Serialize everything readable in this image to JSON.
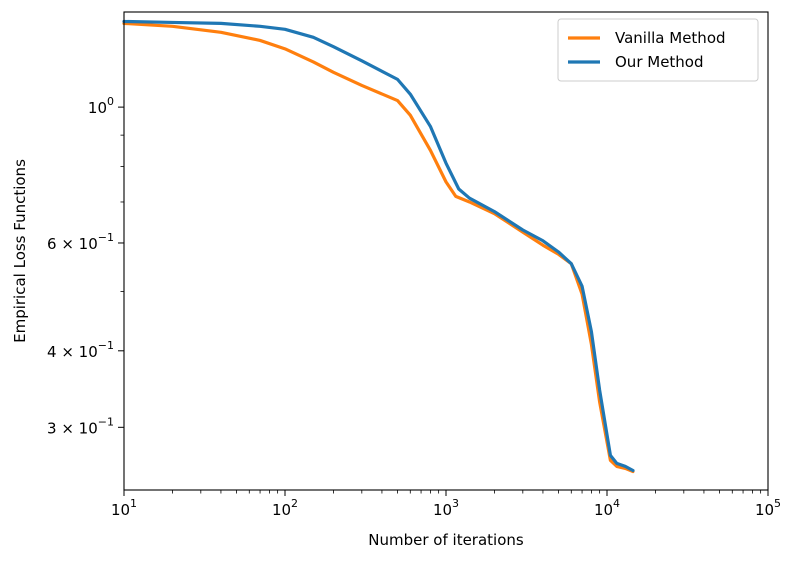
{
  "chart_data": {
    "type": "line",
    "title": "",
    "xlabel": "Number of iterations",
    "ylabel": "Empirical Loss Functions",
    "xscale": "log",
    "yscale": "log",
    "xlim": [
      10,
      100000
    ],
    "ylim": [
      0.237,
      1.43
    ],
    "grid": false,
    "legend": "top-right",
    "x_tick_labels": [
      {
        "value": 10,
        "base": "10",
        "exp": "1"
      },
      {
        "value": 100,
        "base": "10",
        "exp": "2"
      },
      {
        "value": 1000,
        "base": "10",
        "exp": "3"
      },
      {
        "value": 10000,
        "base": "10",
        "exp": "4"
      },
      {
        "value": 100000,
        "base": "10",
        "exp": "5"
      }
    ],
    "y_tick_labels": [
      {
        "value": 1.0,
        "base": "10",
        "exp": "0",
        "mant": ""
      },
      {
        "value": 0.6,
        "base": "10",
        "exp": "−1",
        "mant": "6 × "
      },
      {
        "value": 0.4,
        "base": "10",
        "exp": "−1",
        "mant": "4 × "
      },
      {
        "value": 0.3,
        "base": "10",
        "exp": "−1",
        "mant": "3 × "
      }
    ],
    "y_minor_ticks": [
      0.5,
      0.7,
      0.8,
      0.9
    ],
    "series": [
      {
        "name": "Vanilla Method",
        "color": "#ff7f0e",
        "points": [
          [
            10,
            1.37
          ],
          [
            20,
            1.355
          ],
          [
            40,
            1.325
          ],
          [
            70,
            1.285
          ],
          [
            100,
            1.245
          ],
          [
            150,
            1.185
          ],
          [
            200,
            1.14
          ],
          [
            300,
            1.085
          ],
          [
            500,
            1.025
          ],
          [
            600,
            0.97
          ],
          [
            800,
            0.85
          ],
          [
            1000,
            0.755
          ],
          [
            1150,
            0.715
          ],
          [
            1400,
            0.7
          ],
          [
            2000,
            0.67
          ],
          [
            3000,
            0.625
          ],
          [
            4000,
            0.595
          ],
          [
            5000,
            0.575
          ],
          [
            6000,
            0.555
          ],
          [
            7000,
            0.495
          ],
          [
            8000,
            0.41
          ],
          [
            9000,
            0.33
          ],
          [
            10500,
            0.265
          ],
          [
            11500,
            0.259
          ],
          [
            13000,
            0.257
          ],
          [
            14500,
            0.254
          ]
        ]
      },
      {
        "name": "Our Method",
        "color": "#1f77b4",
        "points": [
          [
            10,
            1.38
          ],
          [
            20,
            1.375
          ],
          [
            40,
            1.37
          ],
          [
            70,
            1.355
          ],
          [
            100,
            1.34
          ],
          [
            150,
            1.3
          ],
          [
            200,
            1.255
          ],
          [
            300,
            1.19
          ],
          [
            500,
            1.11
          ],
          [
            600,
            1.05
          ],
          [
            800,
            0.93
          ],
          [
            1000,
            0.81
          ],
          [
            1200,
            0.735
          ],
          [
            1400,
            0.71
          ],
          [
            2000,
            0.675
          ],
          [
            3000,
            0.63
          ],
          [
            4000,
            0.605
          ],
          [
            5000,
            0.58
          ],
          [
            6000,
            0.555
          ],
          [
            7000,
            0.51
          ],
          [
            8000,
            0.43
          ],
          [
            9000,
            0.345
          ],
          [
            10500,
            0.27
          ],
          [
            11500,
            0.262
          ],
          [
            13000,
            0.259
          ],
          [
            14500,
            0.255
          ]
        ]
      }
    ]
  }
}
